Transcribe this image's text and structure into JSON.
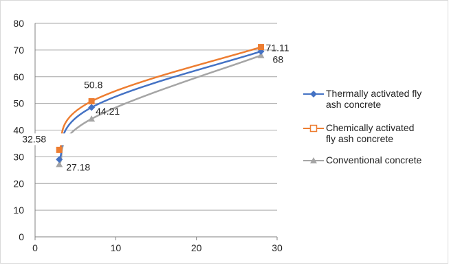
{
  "chart_data": {
    "type": "line",
    "title": "",
    "xlabel": "",
    "ylabel": "",
    "xlim": [
      0,
      30
    ],
    "ylim": [
      0,
      80
    ],
    "x_ticks": [
      "0",
      "10",
      "20",
      "30"
    ],
    "y_ticks": [
      "0",
      "10",
      "20",
      "30",
      "40",
      "50",
      "60",
      "70",
      "80"
    ],
    "grid": "horizontal",
    "legend_position": "right",
    "series": [
      {
        "name": "Thermally activated fly ash concrete",
        "color": "#4472c4",
        "marker": "diamond",
        "x": [
          3,
          7,
          28
        ],
        "y": [
          29,
          48.5,
          69.5
        ],
        "labels": [
          "",
          "",
          ""
        ]
      },
      {
        "name": "Chemically activated fly ash concrete",
        "color": "#ed7d31",
        "marker": "square",
        "x": [
          3,
          7,
          28
        ],
        "y": [
          32.58,
          50.8,
          71.11
        ],
        "labels": [
          "32.58",
          "50.8",
          "71.11"
        ]
      },
      {
        "name": "Conventional concrete",
        "color": "#a5a5a5",
        "marker": "triangle",
        "x": [
          3,
          7,
          28
        ],
        "y": [
          27.18,
          44.21,
          68
        ],
        "labels": [
          "27.18",
          "44.21",
          "68"
        ]
      }
    ]
  }
}
